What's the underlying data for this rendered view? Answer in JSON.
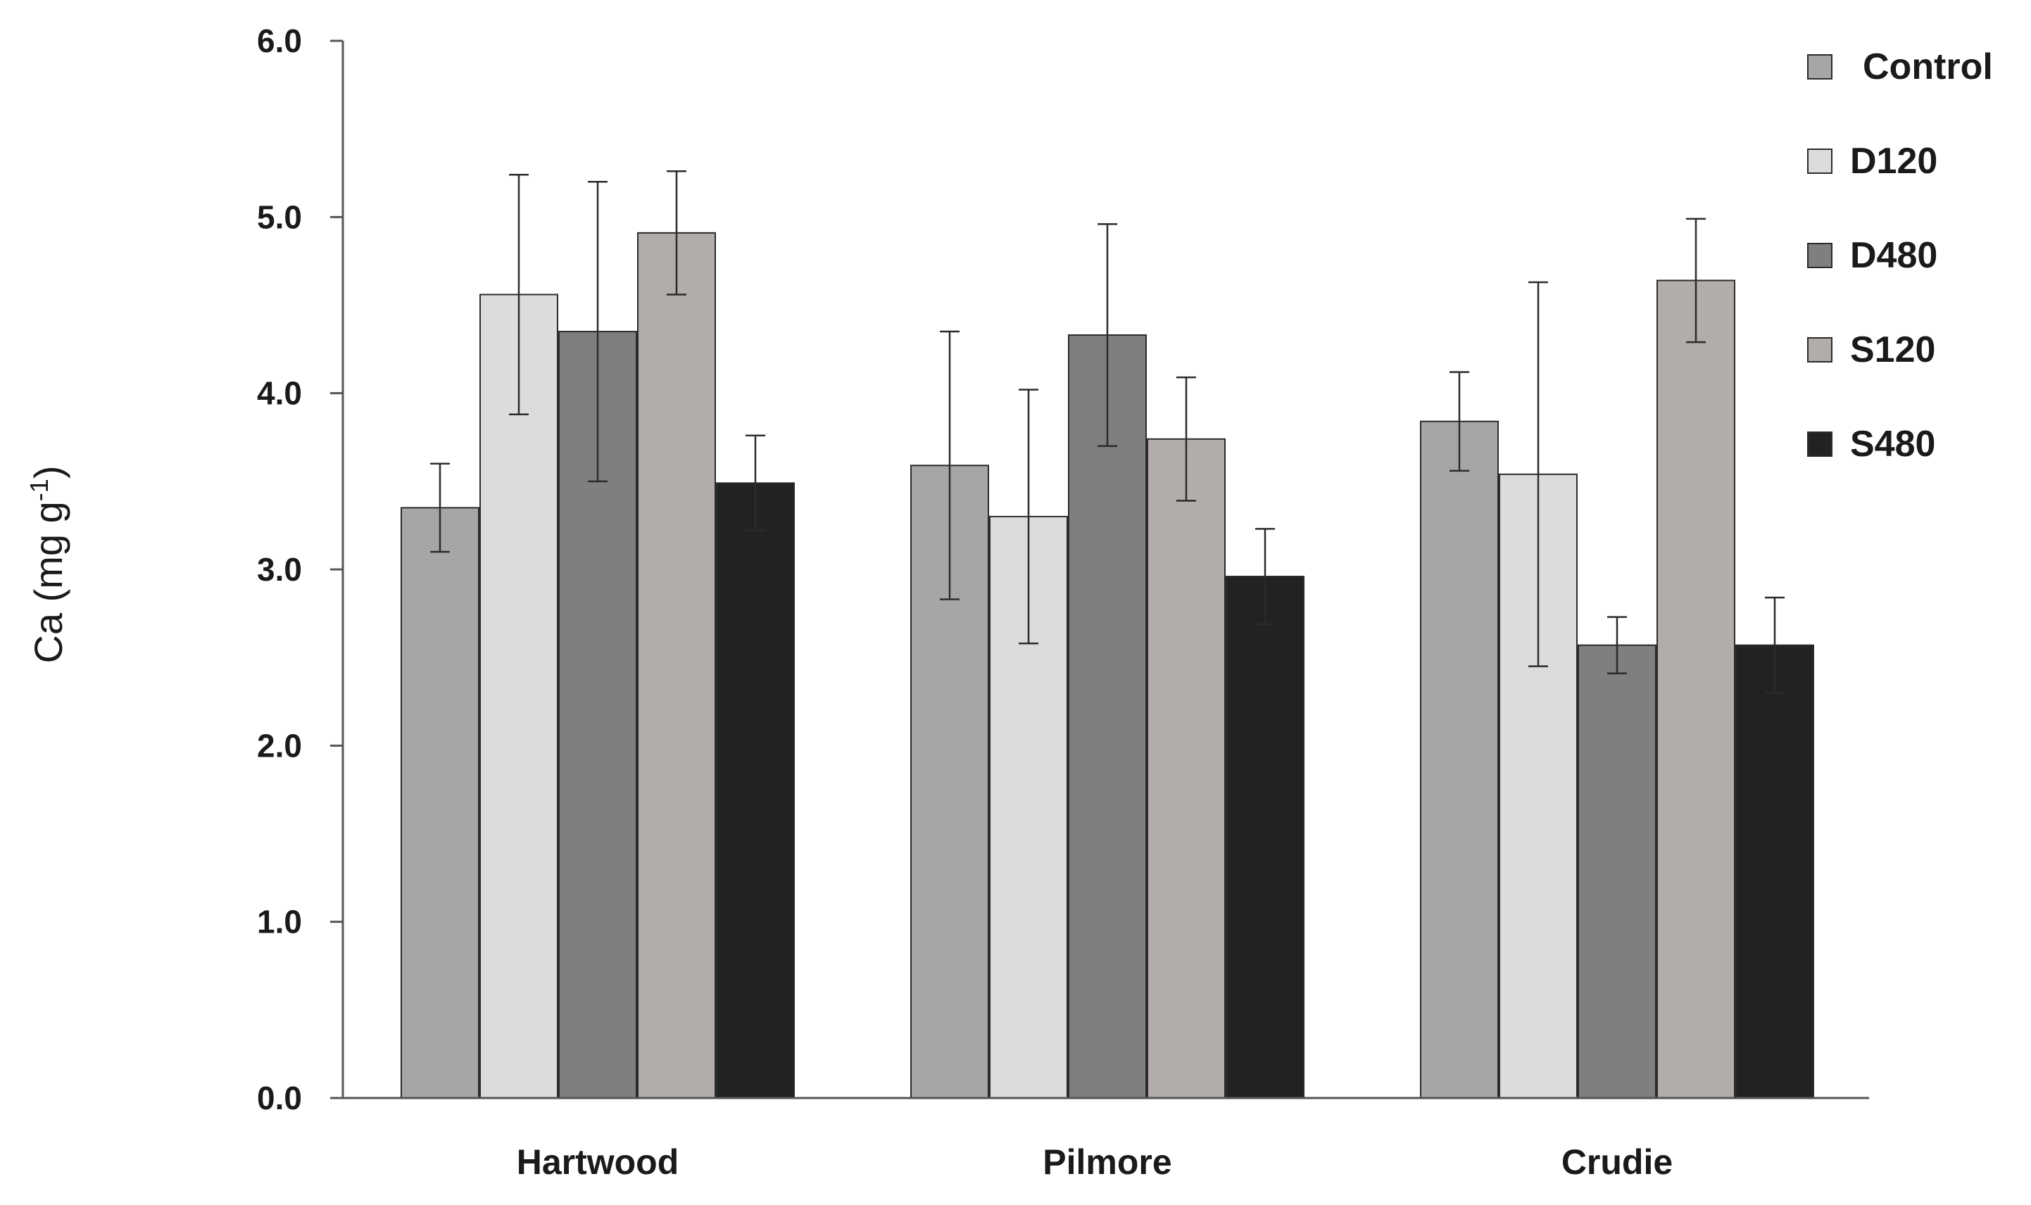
{
  "chart_data": {
    "type": "bar",
    "title": "",
    "xlabel": "",
    "ylabel": "Ca  (mg g-1)",
    "ylabel_parts": {
      "main": "Ca  (mg g",
      "sup": "-1",
      "close": ")"
    },
    "ylim": [
      0,
      6
    ],
    "yticks": [
      0,
      1,
      2,
      3,
      4,
      5,
      6
    ],
    "ytick_labels": [
      "0.0",
      "1.0",
      "2.0",
      "3.0",
      "4.0",
      "5.0",
      "6.0"
    ],
    "grid": false,
    "legend_position": "top-right",
    "categories": [
      "Hartwood",
      "Pilmore",
      "Crudie"
    ],
    "series": [
      {
        "name": "Control",
        "color": "#a6a6a6",
        "values": [
          3.35,
          3.59,
          3.84
        ],
        "errors": [
          0.25,
          0.76,
          0.28
        ]
      },
      {
        "name": "D120",
        "color": "#dcdcdc",
        "values": [
          4.56,
          3.3,
          3.54
        ],
        "errors": [
          0.68,
          0.72,
          1.09
        ]
      },
      {
        "name": "D480",
        "color": "#7f7f7f",
        "values": [
          4.35,
          4.33,
          2.57
        ],
        "errors": [
          0.85,
          0.63,
          0.16
        ]
      },
      {
        "name": "S120",
        "color": "#b2acaa",
        "values": [
          4.91,
          3.74,
          4.64
        ],
        "errors": [
          0.35,
          0.35,
          0.35
        ]
      },
      {
        "name": "S480",
        "color": "#222222",
        "values": [
          3.49,
          2.96,
          2.57
        ],
        "errors": [
          0.27,
          0.27,
          0.27
        ]
      }
    ]
  }
}
